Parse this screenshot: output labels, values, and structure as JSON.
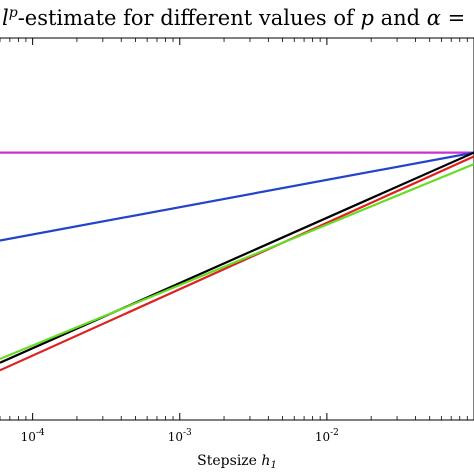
{
  "chart_data": {
    "type": "line",
    "title": {
      "symbol_base": "l",
      "symbol_sup": "p",
      "text": "-estimate for different values of",
      "var_p": "p",
      "and": "and",
      "var_alpha": "α",
      "eq": "="
    },
    "xlabel": {
      "text": "Stepsize",
      "var": "h",
      "sub": "1"
    },
    "xscale": "log",
    "xlim": [
      6e-05,
      0.1
    ],
    "ylim": [
      0,
      1
    ],
    "x_ticks": [
      {
        "value": 0.0001,
        "base": "10",
        "exp": "-4"
      },
      {
        "value": 0.001,
        "base": "10",
        "exp": "-3"
      },
      {
        "value": 0.01,
        "base": "10",
        "exp": "-2"
      }
    ],
    "grid": false,
    "legend": "none",
    "series": [
      {
        "color": "#cc33cc",
        "x": [
          6e-05,
          0.1
        ],
        "y": [
          0.7,
          0.7
        ]
      },
      {
        "color": "#2244cc",
        "x": [
          6e-05,
          0.1
        ],
        "y": [
          0.47,
          0.7
        ]
      },
      {
        "color": "#000000",
        "x": [
          6e-05,
          0.1
        ],
        "y": [
          0.15,
          0.7
        ]
      },
      {
        "color": "#dd2222",
        "x": [
          6e-05,
          0.1
        ],
        "y": [
          0.13,
          0.69
        ]
      },
      {
        "color": "#66dd22",
        "x": [
          6e-05,
          0.1
        ],
        "y": [
          0.16,
          0.67
        ]
      }
    ]
  }
}
